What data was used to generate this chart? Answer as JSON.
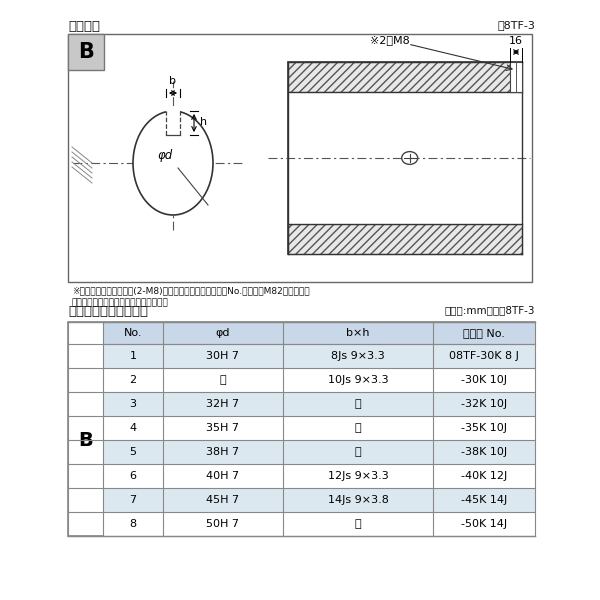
{
  "title_top": "軸穴形状",
  "fig_label_top": "図8TF-3",
  "title_bottom": "軸穴形状コード一覧表",
  "unit_label": "（単位:mm）",
  "table_label": "表8TF-3",
  "note_line1": "※セットボルト用タップ(2-M8)が必要な場合は右記コードNo.の末尾にM82を付ける。",
  "note_line2": "（セットボルトは付属されています。）",
  "diagram_label": "B",
  "dim_b": "b",
  "dim_h": "h",
  "dim_phid": "φd",
  "dim_2m8": "※2－M8",
  "dim_16": "16",
  "table_header": [
    "No.",
    "φd",
    "b×h",
    "コード No."
  ],
  "table_rows": [
    [
      "1",
      "30H 7",
      "8Js 9×3.3",
      "08TF-30K 8 J"
    ],
    [
      "2",
      "〃",
      "10Js 9×3.3",
      "-30K 10J"
    ],
    [
      "3",
      "32H 7",
      "〃",
      "-32K 10J"
    ],
    [
      "4",
      "35H 7",
      "〃",
      "-35K 10J"
    ],
    [
      "5",
      "38H 7",
      "〃",
      "-38K 10J"
    ],
    [
      "6",
      "40H 7",
      "12Js 9×3.3",
      "-40K 12J"
    ],
    [
      "7",
      "45H 7",
      "14Js 9×3.8",
      "-45K 14J"
    ],
    [
      "8",
      "50H 7",
      "〃",
      "-50K 14J"
    ]
  ],
  "row_label_B": "B",
  "bg_color": "#ffffff",
  "table_hdr_bg": "#c8d8e8",
  "table_row_light": "#dce8f0",
  "table_row_white": "#ffffff",
  "border_color": "#888888",
  "text_color": "#111111",
  "hatch_color": "#aaaaaa",
  "hatch_bg": "#e8e8e8"
}
